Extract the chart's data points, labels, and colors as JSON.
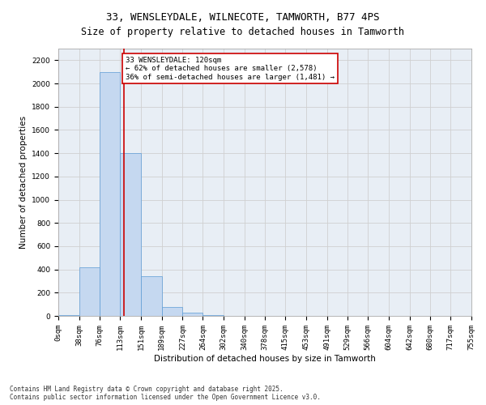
{
  "title_line1": "33, WENSLEYDALE, WILNECOTE, TAMWORTH, B77 4PS",
  "title_line2": "Size of property relative to detached houses in Tamworth",
  "xlabel": "Distribution of detached houses by size in Tamworth",
  "ylabel": "Number of detached properties",
  "footnote": "Contains HM Land Registry data © Crown copyright and database right 2025.\nContains public sector information licensed under the Open Government Licence v3.0.",
  "bar_left_edges": [
    0,
    38,
    76,
    113,
    151,
    189,
    227,
    264,
    302,
    340,
    378,
    415,
    453,
    491,
    529,
    566,
    604,
    642,
    680,
    717
  ],
  "bar_widths": [
    38,
    38,
    37,
    38,
    38,
    38,
    37,
    38,
    38,
    38,
    37,
    38,
    38,
    38,
    37,
    38,
    38,
    38,
    37,
    38
  ],
  "bar_heights": [
    5,
    420,
    2100,
    1400,
    340,
    80,
    30,
    5,
    2,
    0,
    0,
    0,
    0,
    0,
    0,
    0,
    0,
    0,
    0,
    0
  ],
  "bar_color": "#c5d8f0",
  "bar_edgecolor": "#5b9bd5",
  "grid_color": "#d0d0d0",
  "bg_color": "#e8eef5",
  "vline_x": 120,
  "vline_color": "#cc0000",
  "annotation_text": "33 WENSLEYDALE: 120sqm\n← 62% of detached houses are smaller (2,578)\n36% of semi-detached houses are larger (1,481) →",
  "annotation_box_edgecolor": "#cc0000",
  "annotation_box_facecolor": "#ffffff",
  "ylim": [
    0,
    2300
  ],
  "yticks": [
    0,
    200,
    400,
    600,
    800,
    1000,
    1200,
    1400,
    1600,
    1800,
    2000,
    2200
  ],
  "xticklabels": [
    "0sqm",
    "38sqm",
    "76sqm",
    "113sqm",
    "151sqm",
    "189sqm",
    "227sqm",
    "264sqm",
    "302sqm",
    "340sqm",
    "378sqm",
    "415sqm",
    "453sqm",
    "491sqm",
    "529sqm",
    "566sqm",
    "604sqm",
    "642sqm",
    "680sqm",
    "717sqm",
    "755sqm"
  ],
  "title_fontsize": 9,
  "axis_label_fontsize": 7.5,
  "tick_fontsize": 6.5,
  "annotation_fontsize": 6.5,
  "footnote_fontsize": 5.5
}
